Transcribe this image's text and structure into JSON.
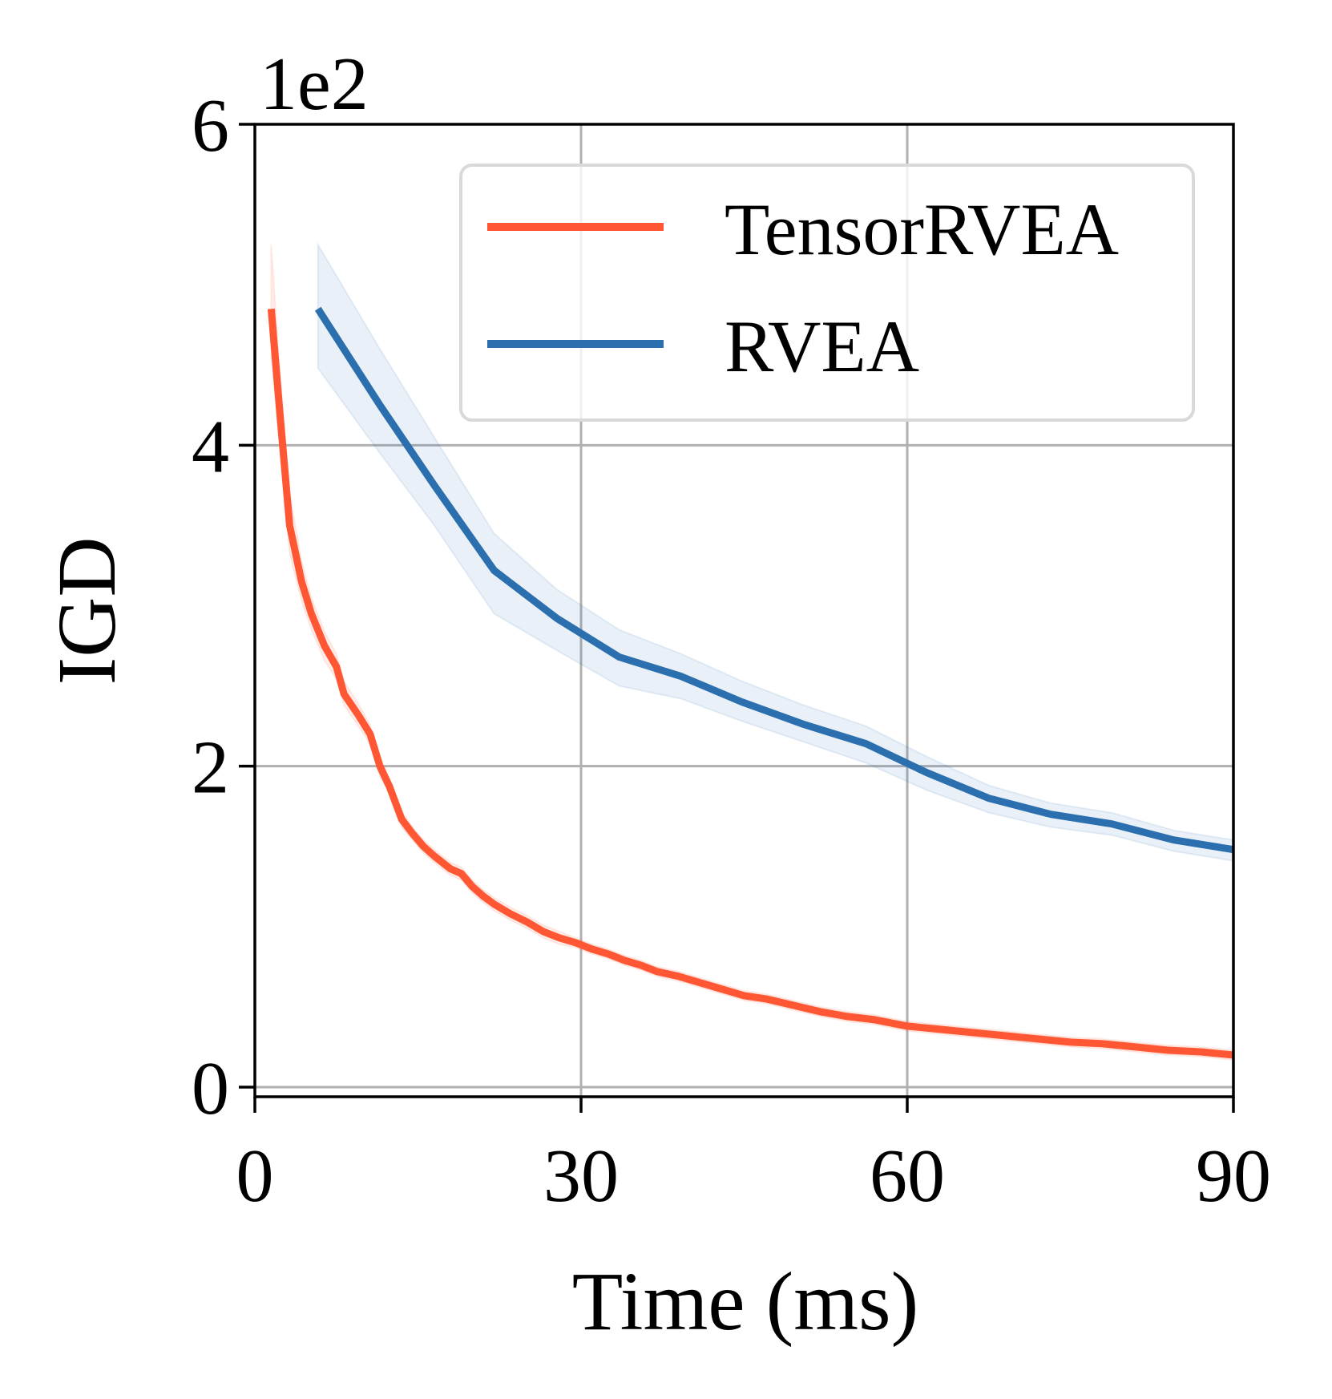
{
  "chart_data": {
    "type": "line",
    "title": "",
    "xlabel": "Time (ms)",
    "ylabel": "IGD",
    "y_offset_label": "1e2",
    "xlim": [
      0,
      90
    ],
    "ylim": [
      -0.06,
      6
    ],
    "x_ticks": [
      0,
      30,
      60,
      90
    ],
    "y_ticks": [
      0,
      2,
      4,
      6
    ],
    "grid": true,
    "legend_position": "top-right",
    "series": [
      {
        "name": "TensorRVEA",
        "color": "#FF5733",
        "x": [
          1.5,
          2.3,
          3.2,
          4.3,
          5.2,
          6.4,
          7.5,
          8.2,
          9.5,
          10.6,
          11.5,
          12.4,
          13.5,
          14.5,
          15.5,
          16.5,
          18,
          19,
          20,
          21,
          22,
          23.5,
          25,
          26.5,
          28,
          29.5,
          31,
          32.5,
          34,
          35.5,
          37,
          39,
          41,
          43,
          45,
          47,
          49.5,
          52,
          54.5,
          57,
          60,
          63,
          66,
          69,
          72,
          75,
          78,
          81,
          84,
          87,
          90
        ],
        "y": [
          4.85,
          4.2,
          3.5,
          3.15,
          2.95,
          2.75,
          2.62,
          2.45,
          2.32,
          2.2,
          2.0,
          1.87,
          1.67,
          1.58,
          1.5,
          1.44,
          1.36,
          1.33,
          1.25,
          1.19,
          1.14,
          1.08,
          1.03,
          0.97,
          0.93,
          0.9,
          0.86,
          0.83,
          0.79,
          0.76,
          0.72,
          0.69,
          0.65,
          0.61,
          0.57,
          0.55,
          0.51,
          0.47,
          0.44,
          0.42,
          0.38,
          0.36,
          0.34,
          0.32,
          0.3,
          0.28,
          0.27,
          0.25,
          0.23,
          0.22,
          0.2
        ],
        "band_upper": [
          5.25,
          4.45,
          3.7,
          3.28,
          3.05,
          2.84,
          2.7,
          2.53,
          2.39,
          2.26,
          2.06,
          1.92,
          1.72,
          1.62,
          1.54,
          1.48,
          1.4,
          1.37,
          1.29,
          1.23,
          1.18,
          1.12,
          1.07,
          1.01,
          0.97,
          0.93,
          0.89,
          0.86,
          0.82,
          0.79,
          0.75,
          0.72,
          0.68,
          0.64,
          0.6,
          0.58,
          0.54,
          0.5,
          0.47,
          0.45,
          0.41,
          0.39,
          0.37,
          0.35,
          0.33,
          0.31,
          0.3,
          0.28,
          0.26,
          0.25,
          0.23
        ],
        "band_lower": [
          4.55,
          4.0,
          3.32,
          3.03,
          2.85,
          2.66,
          2.54,
          2.38,
          2.25,
          2.14,
          1.94,
          1.82,
          1.62,
          1.54,
          1.46,
          1.4,
          1.32,
          1.29,
          1.21,
          1.15,
          1.1,
          1.04,
          0.99,
          0.93,
          0.89,
          0.87,
          0.83,
          0.8,
          0.76,
          0.73,
          0.69,
          0.66,
          0.62,
          0.58,
          0.54,
          0.52,
          0.48,
          0.44,
          0.41,
          0.39,
          0.35,
          0.33,
          0.31,
          0.29,
          0.27,
          0.25,
          0.24,
          0.22,
          0.2,
          0.19,
          0.17
        ]
      },
      {
        "name": "RVEA",
        "color": "#2B6FAE",
        "x": [
          5.8,
          11.5,
          16.5,
          22,
          27.8,
          33.5,
          39.2,
          44.8,
          50.5,
          56.2,
          61.8,
          67.5,
          73.2,
          78.8,
          84.5,
          90
        ],
        "y": [
          4.85,
          4.25,
          3.75,
          3.22,
          2.92,
          2.68,
          2.56,
          2.4,
          2.26,
          2.14,
          1.96,
          1.8,
          1.7,
          1.64,
          1.54,
          1.48
        ],
        "band_upper": [
          5.25,
          4.6,
          4.05,
          3.45,
          3.1,
          2.85,
          2.7,
          2.53,
          2.38,
          2.25,
          2.06,
          1.88,
          1.77,
          1.71,
          1.6,
          1.54
        ],
        "band_lower": [
          4.48,
          3.95,
          3.5,
          2.95,
          2.72,
          2.5,
          2.42,
          2.28,
          2.15,
          2.02,
          1.85,
          1.71,
          1.62,
          1.57,
          1.47,
          1.41
        ]
      }
    ]
  }
}
